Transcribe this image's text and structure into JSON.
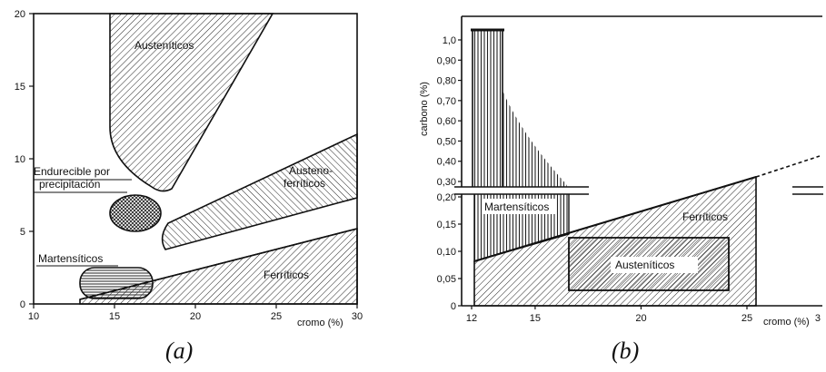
{
  "captions": {
    "a": "(a)",
    "b": "(b)"
  },
  "chart_data": [
    {
      "type": "area",
      "panel": "(a)",
      "xlabel": "cromo (%)",
      "ylabel": "",
      "xlim": [
        10,
        30
      ],
      "ylim": [
        0,
        20
      ],
      "x_ticks": [
        10,
        15,
        20,
        25,
        30
      ],
      "y_ticks": [
        0,
        5,
        10,
        15,
        20
      ],
      "grid": false,
      "regions": [
        {
          "name": "Austeníticos",
          "label_at": [
            17.5,
            17.9
          ]
        },
        {
          "name": "Austeno-ferríticos",
          "lines": [
            "Austeno-",
            "ferríticos"
          ],
          "label_at": [
            26.2,
            7.9
          ]
        },
        {
          "name": "Endurecible por precipitación",
          "lines": [
            "Endurecible por",
            "precipitación"
          ],
          "label_at": [
            14.2,
            8.7
          ]
        },
        {
          "name": "Martensíticos",
          "label_at": [
            13.5,
            3.1
          ]
        },
        {
          "name": "Ferríticos",
          "label_at": [
            25.0,
            2.0
          ]
        }
      ]
    },
    {
      "type": "area",
      "panel": "(b)",
      "xlabel": "cromo (%)",
      "ylabel": "carbono (%)",
      "xlim": [
        12,
        30
      ],
      "x_ticks": [
        12,
        15,
        20,
        25
      ],
      "x_tick_edge_label": "3",
      "y_ticks_lower": [
        "0",
        "0,05",
        "0,10",
        "0,15",
        "0,20"
      ],
      "y_ticks_upper": [
        "0,30",
        "0,40",
        "0,50",
        "0,60",
        "0,70",
        "0,80",
        "0,90",
        "1,0"
      ],
      "y_axis_broken": true,
      "grid": false,
      "ferritic_boundary": [
        [
          12.5,
          0.075
        ],
        [
          26.5,
          0.33
        ],
        [
          29.3,
          0.42
        ]
      ],
      "regions": [
        {
          "name": "Martensíticos",
          "label_at": [
            14.6,
            0.19
          ]
        },
        {
          "name": "Ferríticos",
          "label_at": [
            24.2,
            0.19
          ]
        },
        {
          "name": "Austeníticos",
          "x_range": [
            17.5,
            25.6
          ],
          "y_range": [
            0.025,
            0.13
          ],
          "label_at": [
            22.0,
            0.085
          ]
        }
      ]
    }
  ]
}
